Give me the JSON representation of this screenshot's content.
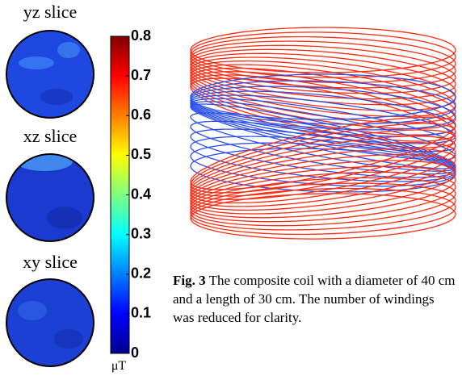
{
  "panels": [
    {
      "label": "yz slice"
    },
    {
      "label": "xz slice"
    },
    {
      "label": "xy slice"
    }
  ],
  "colorbar": {
    "lim": [
      0,
      0.8
    ],
    "ticks": [
      0,
      0.1,
      0.2,
      0.3,
      0.4,
      0.5,
      0.6,
      0.7,
      0.8
    ],
    "unit": "μT"
  },
  "caption": {
    "label": "Fig. 3",
    "text": "The composite coil with a diameter of 40 cm and a length of 30 cm.  The number of windings was reduced for clarity."
  }
}
